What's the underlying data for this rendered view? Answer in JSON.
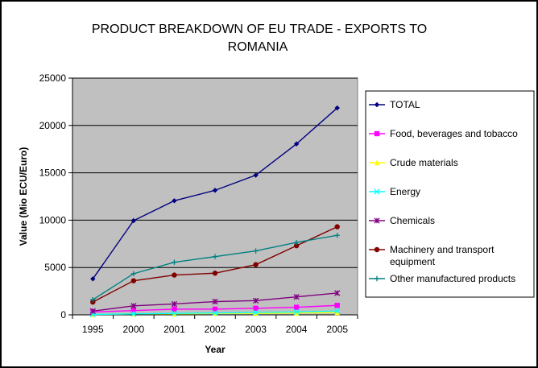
{
  "chart_data": {
    "type": "line",
    "title_lines": [
      "PRODUCT BREAKDOWN OF EU TRADE - EXPORTS TO",
      "ROMANIA"
    ],
    "xlabel": "Year",
    "ylabel": "Value (Mio ECU/Euro)",
    "categories": [
      "1995",
      "2000",
      "2001",
      "2002",
      "2003",
      "2004",
      "2005"
    ],
    "ylim": [
      0,
      25000
    ],
    "yticks": [
      "0",
      "5000",
      "10000",
      "15000",
      "20000",
      "25000"
    ],
    "grid": true,
    "plot_background": "#c0c0c0",
    "legend_position": "right",
    "series": [
      {
        "name": "TOTAL",
        "color": "#000080",
        "marker": "diamond",
        "values": [
          3800,
          9950,
          12050,
          13150,
          14750,
          18050,
          21850
        ]
      },
      {
        "name": "Food, beverages and tobacco",
        "color": "#ff00ff",
        "marker": "square",
        "values": [
          300,
          450,
          600,
          600,
          700,
          800,
          1000
        ]
      },
      {
        "name": "Crude materials",
        "color": "#ffff00",
        "marker": "triangle",
        "values": [
          50,
          100,
          100,
          150,
          150,
          200,
          250
        ]
      },
      {
        "name": "Energy",
        "color": "#00ffff",
        "marker": "x",
        "values": [
          50,
          100,
          150,
          200,
          250,
          300,
          400
        ]
      },
      {
        "name": "Chemicals",
        "color": "#800080",
        "marker": "star",
        "values": [
          400,
          950,
          1150,
          1400,
          1500,
          1900,
          2300
        ]
      },
      {
        "name": "Machinery and transport equipment",
        "label_lines": [
          "Machinery and transport",
          "equipment"
        ],
        "color": "#800000",
        "marker": "circle",
        "values": [
          1350,
          3600,
          4200,
          4400,
          5300,
          7300,
          9300
        ]
      },
      {
        "name": "Other manufactured products",
        "color": "#008080",
        "marker": "plus",
        "values": [
          1600,
          4350,
          5550,
          6150,
          6750,
          7650,
          8400
        ]
      }
    ]
  }
}
